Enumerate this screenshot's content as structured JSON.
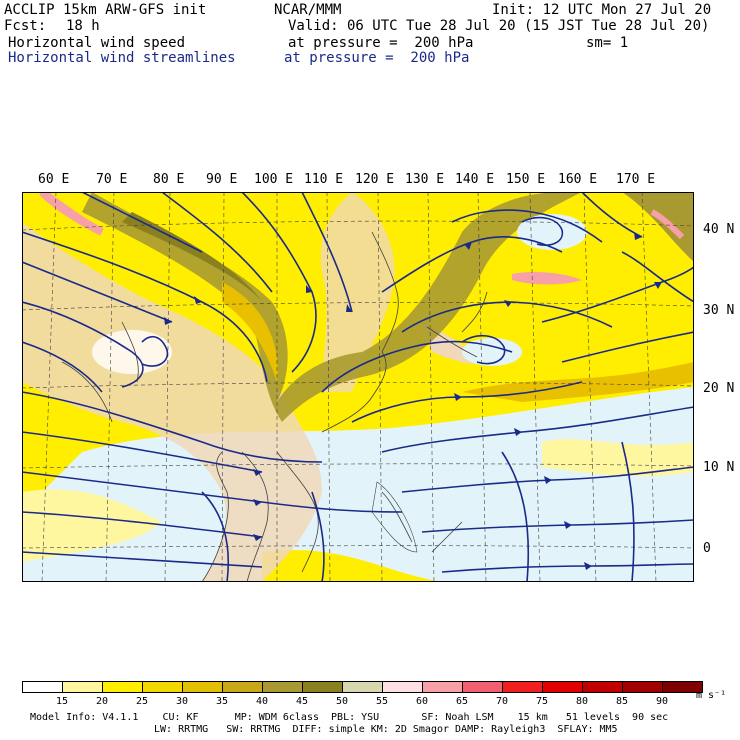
{
  "header": {
    "model": "ACCLIP 15km ARW-GFS init",
    "center": "NCAR/MMM",
    "init": "Init: 12 UTC Mon 27 Jul 20",
    "fcst_label": "Fcst:",
    "fcst_value": "18 h",
    "valid": "Valid: 06 UTC Tue 28 Jul 20 (15 JST Tue 28 Jul 20)",
    "field1_name": "Horizontal wind speed",
    "field1_level": "at pressure =  200 hPa",
    "smooth": "sm= 1",
    "field2_name": "Horizontal wind streamlines",
    "field2_level": "at pressure =  200 hPa"
  },
  "map": {
    "lon_labels": [
      "60 E",
      "70 E",
      "80 E",
      "90 E",
      "100 E",
      "110 E",
      "120 E",
      "130 E",
      "140 E",
      "150 E",
      "160 E",
      "170 E"
    ],
    "lat_labels": [
      "40 N",
      "30 N",
      "20 N",
      "10 N",
      "0"
    ],
    "colors": {
      "calm": "#ffffff",
      "light": "#e2f4fa",
      "land": "#f0d8b8",
      "yellow": "#ffee00",
      "gold": "#e8c000",
      "olive": "#a89a30",
      "dark_olive": "#8a8020",
      "pink": "#f7a0a8",
      "streamline": "#1a2a8a",
      "coast": "#404040"
    }
  },
  "colorbar": {
    "labels": [
      "15",
      "20",
      "25",
      "30",
      "35",
      "40",
      "45",
      "50",
      "55",
      "60",
      "65",
      "70",
      "75",
      "80",
      "85",
      "90"
    ],
    "units": "m s⁻¹",
    "colors": [
      "#ffffff",
      "#fff6a0",
      "#ffee00",
      "#f2d800",
      "#e0c000",
      "#c8a818",
      "#a89a30",
      "#8a8020",
      "#d8d8b0",
      "#fce0e4",
      "#f7a0a8",
      "#f06070",
      "#f02020",
      "#e00000",
      "#c00000",
      "#a00000",
      "#800000"
    ]
  },
  "footer": {
    "line1": "Model Info: V4.1.1    CU: KF      MP: WDM 6class  PBL: YSU       SF: Noah LSM    15 km   51 levels  90 sec",
    "line2": "LW: RRTMG   SW: RRTMG  DIFF: simple KM: 2D Smagor DAMP: Rayleigh3  SFLAY: MM5"
  }
}
